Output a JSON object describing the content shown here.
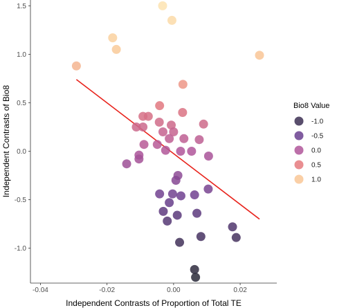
{
  "chart_data": {
    "type": "scatter",
    "xlabel": "Independent Contrasts of Proportion of Total TE",
    "ylabel": "Independent Contrasts of Bio8",
    "xlim": [
      -0.043,
      0.031
    ],
    "ylim": [
      -1.36,
      1.56
    ],
    "x_ticks": [
      -0.04,
      -0.02,
      0.0,
      0.02
    ],
    "x_tick_labels": [
      "-0.04",
      "-0.02",
      "0.00",
      "0.02"
    ],
    "y_ticks": [
      -1.0,
      -0.5,
      0.0,
      0.5,
      1.0,
      1.5
    ],
    "y_tick_labels": [
      "-1.0",
      "-0.5",
      "0.0",
      "0.5",
      "1.0",
      "1.5"
    ],
    "grid": false,
    "legend": {
      "title": "Bio8 Value",
      "position": "right",
      "entries": [
        {
          "label": "-1.0",
          "value": -1.0
        },
        {
          "label": "-0.5",
          "value": -0.5
        },
        {
          "label": "0.0",
          "value": 0.0
        },
        {
          "label": "0.5",
          "value": 0.5
        },
        {
          "label": "1.0",
          "value": 1.0
        }
      ]
    },
    "color_scale": {
      "min": -1.3,
      "max": 1.5,
      "stops": [
        {
          "value": -1.3,
          "color": "#2a2a3a"
        },
        {
          "value": -1.0,
          "color": "#3c2f52"
        },
        {
          "value": -0.5,
          "color": "#6a3f8f"
        },
        {
          "value": 0.0,
          "color": "#b0569a"
        },
        {
          "value": 0.5,
          "color": "#e57a7e"
        },
        {
          "value": 1.0,
          "color": "#f9c796"
        },
        {
          "value": 1.5,
          "color": "#fde3b0"
        }
      ]
    },
    "points": [
      {
        "x": -0.0033,
        "y": 1.5
      },
      {
        "x": -0.0005,
        "y": 1.35
      },
      {
        "x": -0.0183,
        "y": 1.17
      },
      {
        "x": -0.0172,
        "y": 1.05
      },
      {
        "x": 0.0258,
        "y": 0.99
      },
      {
        "x": -0.0292,
        "y": 0.88
      },
      {
        "x": 0.0028,
        "y": 0.69
      },
      {
        "x": -0.0042,
        "y": 0.47
      },
      {
        "x": 0.0027,
        "y": 0.4
      },
      {
        "x": -0.0092,
        "y": 0.36
      },
      {
        "x": -0.0076,
        "y": 0.36
      },
      {
        "x": -0.0112,
        "y": 0.25
      },
      {
        "x": -0.0092,
        "y": 0.25
      },
      {
        "x": -0.0043,
        "y": 0.3
      },
      {
        "x": -0.0007,
        "y": 0.27
      },
      {
        "x": 0.009,
        "y": 0.28
      },
      {
        "x": -0.0032,
        "y": 0.2
      },
      {
        "x": 0.0,
        "y": 0.2
      },
      {
        "x": 0.0077,
        "y": 0.12
      },
      {
        "x": 0.0031,
        "y": 0.13
      },
      {
        "x": -0.0013,
        "y": 0.13
      },
      {
        "x": -0.0089,
        "y": 0.07
      },
      {
        "x": -0.0049,
        "y": 0.07
      },
      {
        "x": -0.0024,
        "y": 0.01
      },
      {
        "x": 0.0021,
        "y": 0.0
      },
      {
        "x": 0.0054,
        "y": 0.0
      },
      {
        "x": -0.0104,
        "y": -0.04
      },
      {
        "x": -0.0104,
        "y": -0.08
      },
      {
        "x": 0.0105,
        "y": -0.05
      },
      {
        "x": -0.0141,
        "y": -0.13
      },
      {
        "x": 0.0013,
        "y": -0.25
      },
      {
        "x": 0.0007,
        "y": -0.3
      },
      {
        "x": 0.0104,
        "y": -0.39
      },
      {
        "x": -0.0042,
        "y": -0.44
      },
      {
        "x": -0.0003,
        "y": -0.44
      },
      {
        "x": 0.0022,
        "y": -0.46
      },
      {
        "x": 0.0063,
        "y": -0.45
      },
      {
        "x": -0.0013,
        "y": -0.53
      },
      {
        "x": -0.0031,
        "y": -0.62
      },
      {
        "x": 0.0011,
        "y": -0.66
      },
      {
        "x": 0.007,
        "y": -0.64
      },
      {
        "x": -0.0019,
        "y": -0.72
      },
      {
        "x": 0.0082,
        "y": -0.88
      },
      {
        "x": 0.0177,
        "y": -0.78
      },
      {
        "x": 0.0188,
        "y": -0.89
      },
      {
        "x": 0.0018,
        "y": -0.94
      },
      {
        "x": 0.0063,
        "y": -1.22
      },
      {
        "x": 0.0066,
        "y": -1.3
      }
    ],
    "trend_line": {
      "color": "#e8231c",
      "points": [
        {
          "x": -0.0292,
          "y": 0.74
        },
        {
          "x": 0.0258,
          "y": -0.7
        }
      ]
    }
  }
}
